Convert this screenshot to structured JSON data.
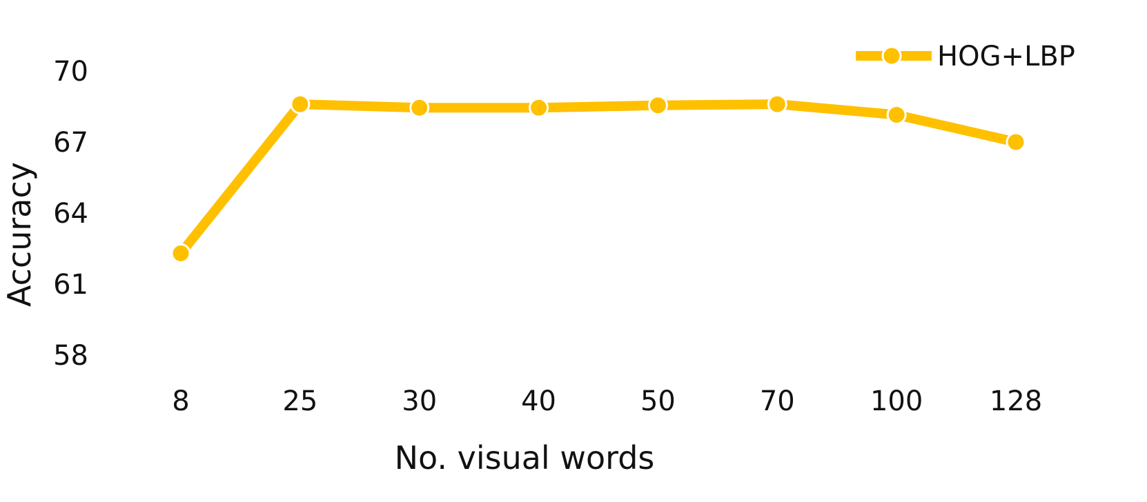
{
  "chart_data": {
    "type": "line",
    "title": "",
    "xlabel": "No. visual words",
    "ylabel": "Accuracy",
    "categories": [
      "8",
      "25",
      "30",
      "40",
      "50",
      "70",
      "100",
      "128"
    ],
    "yticks": [
      "58",
      "61",
      "64",
      "67",
      "70"
    ],
    "ylim": [
      58,
      70
    ],
    "grid": false,
    "legend_position": "top-right",
    "series": [
      {
        "name": "HOG+LBP",
        "color": "#FFC000",
        "marker": "circle",
        "values": [
          62.3,
          68.6,
          68.45,
          68.45,
          68.55,
          68.6,
          68.15,
          67.0
        ]
      }
    ]
  }
}
